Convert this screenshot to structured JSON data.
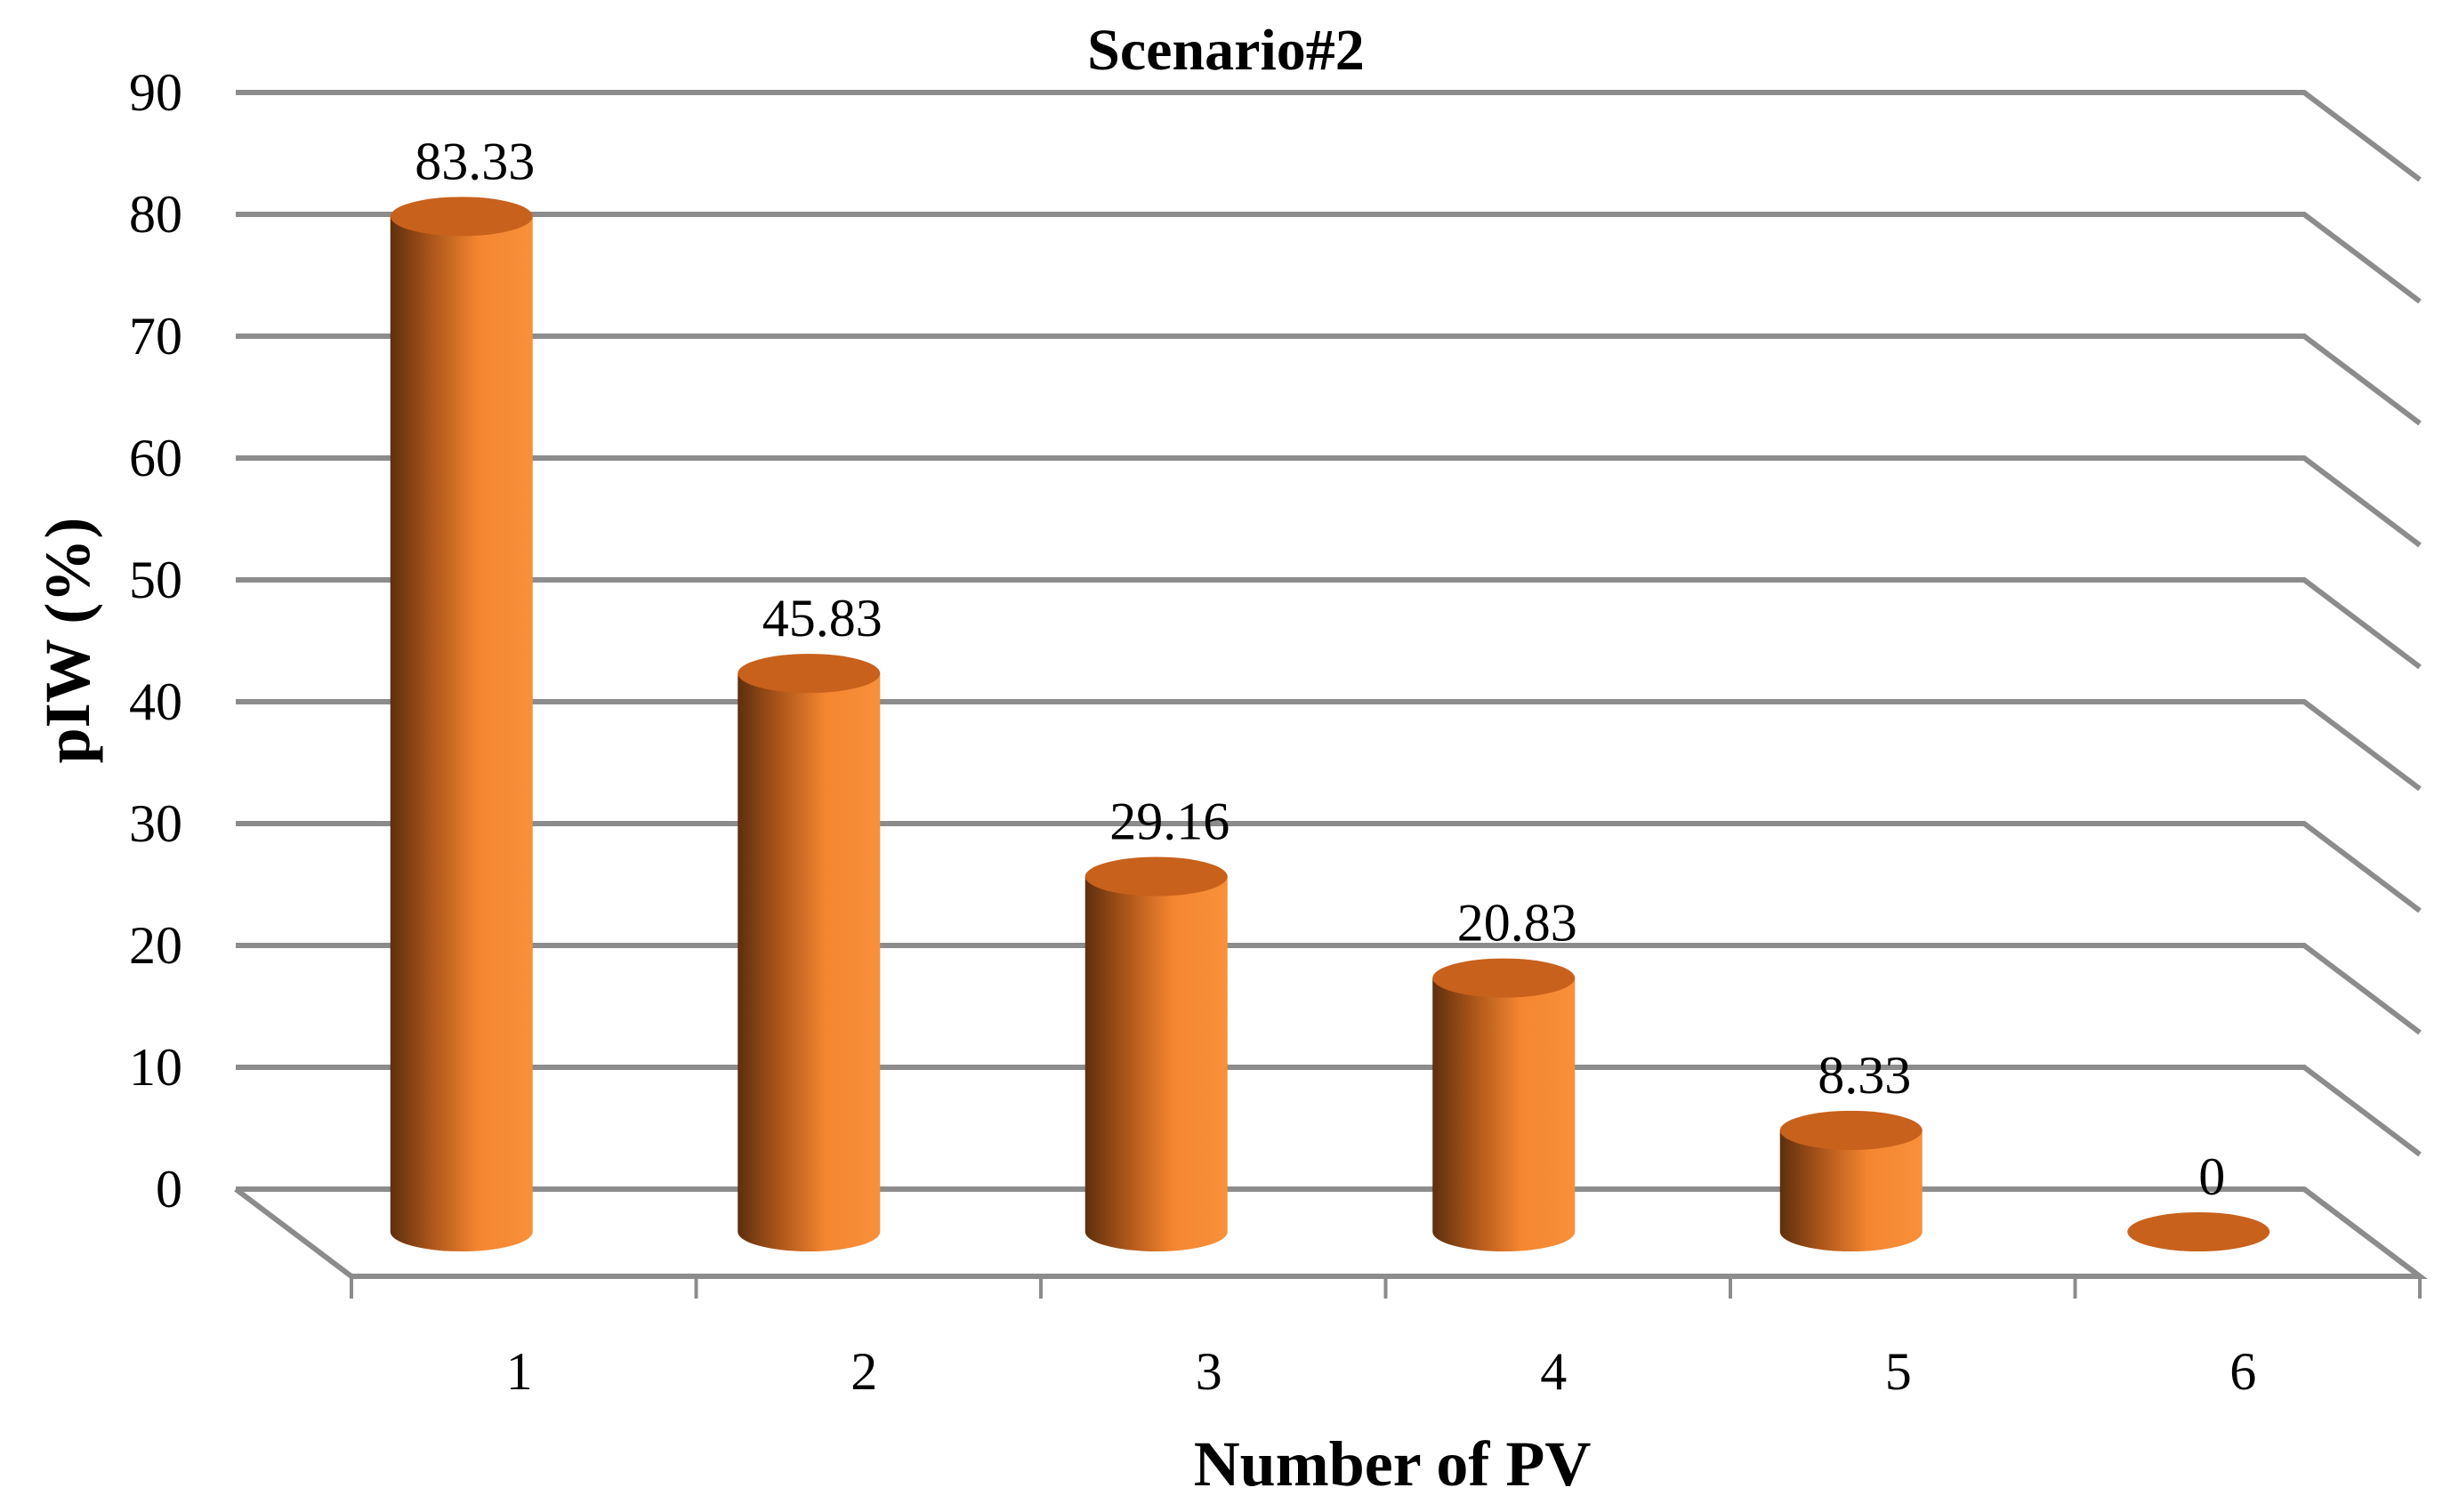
{
  "chart_data": {
    "type": "bar",
    "style": "3d-cylinder",
    "title": "Scenario#2",
    "xlabel": "Number of PV",
    "ylabel": "pIW (%)",
    "categories": [
      "1",
      "2",
      "3",
      "4",
      "5",
      "6"
    ],
    "values": [
      83.33,
      45.83,
      29.16,
      20.83,
      8.33,
      0
    ],
    "data_labels": [
      "83.33",
      "45.83",
      "29.16",
      "20.83",
      "8.33",
      "0"
    ],
    "ylim": [
      0,
      90
    ],
    "yticks": [
      0,
      10,
      20,
      30,
      40,
      50,
      60,
      70,
      80,
      90
    ],
    "ytick_labels": [
      "0",
      "10",
      "20",
      "30",
      "40",
      "50",
      "60",
      "70",
      "80",
      "90"
    ],
    "grid": true,
    "bar_color": "#f58631",
    "bar_shadow_color": "#6e3a14",
    "bar_top_color": "#c8611c",
    "grid_color": "#8c8c8c"
  }
}
